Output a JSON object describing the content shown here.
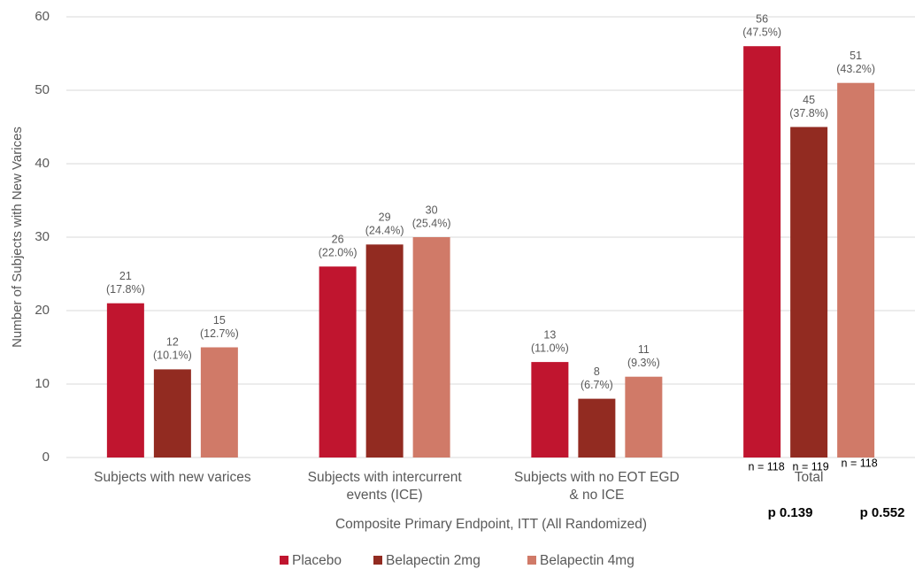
{
  "chart_data": {
    "type": "bar",
    "y_label": "Number of Subjects with New Varices",
    "x_label": "Composite Primary Endpoint, ITT (All Randomized)",
    "categories": [
      [
        "Subjects with new varices"
      ],
      [
        "Subjects with intercurrent",
        "events (ICE)"
      ],
      [
        "Subjects with no EOT EGD",
        "& no ICE"
      ],
      [
        "Total"
      ]
    ],
    "series": [
      {
        "name": "Placebo",
        "color": "#c0152f",
        "values": [
          21,
          26,
          13,
          56
        ],
        "percent_labels": [
          "(17.8%)",
          "(22.0%)",
          "(11.0%)",
          "(47.5%)"
        ]
      },
      {
        "name": "Belapectin 2mg",
        "color": "#922b21",
        "values": [
          12,
          29,
          8,
          45
        ],
        "percent_labels": [
          "(10.1%)",
          "(24.4%)",
          "(6.7%)",
          "(37.8%)"
        ]
      },
      {
        "name": "Belapectin 4mg",
        "color": "#d07a68",
        "values": [
          15,
          30,
          11,
          51
        ],
        "percent_labels": [
          "(12.7%)",
          "(25.4%)",
          "(9.3%)",
          "(43.2%)"
        ]
      }
    ],
    "ylim": [
      0,
      60
    ],
    "yticks": [
      0,
      10,
      20,
      30,
      40,
      50,
      60
    ],
    "grid": true,
    "legend": "bottom",
    "n_labels": [
      "n = 118",
      "n = 119",
      "n = 118"
    ],
    "p_labels": [
      "p 0.139",
      "p 0.552"
    ]
  }
}
